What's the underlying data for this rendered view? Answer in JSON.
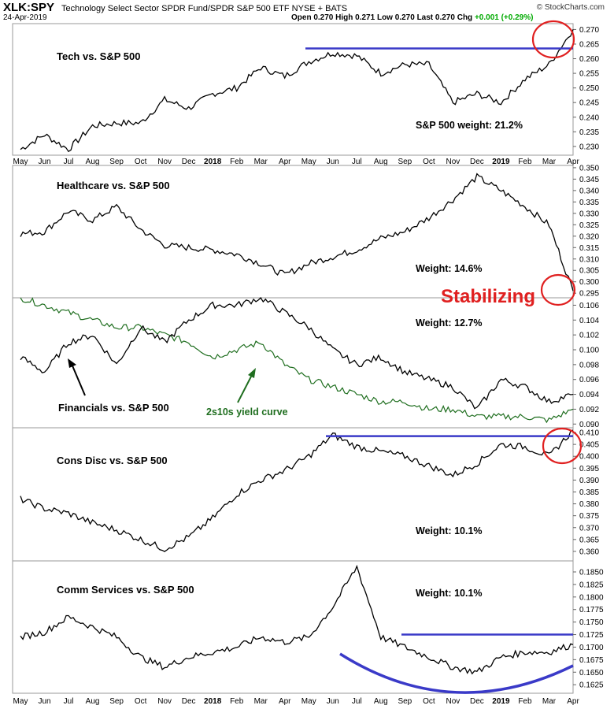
{
  "header": {
    "symbol": "XLK:SPY",
    "description": "Technology Select Sector SPDR Fund/SPDR S&P 500 ETF",
    "exchange": "NYSE + BATS",
    "date": "24-Apr-2019",
    "brand": "© StockCharts.com",
    "quote": {
      "open_label": "Open",
      "open": "0.270",
      "high_label": "High",
      "high": "0.271",
      "low_label": "Low",
      "low": "0.270",
      "last_label": "Last",
      "last": "0.270",
      "chg_label": "Chg",
      "chg": "+0.001 (+0.29%)"
    }
  },
  "x_axis": {
    "months": [
      "May",
      "Jun",
      "Jul",
      "Aug",
      "Sep",
      "Oct",
      "Nov",
      "Dec",
      "2018",
      "Feb",
      "Mar",
      "Apr",
      "May",
      "Jun",
      "Jul",
      "Aug",
      "Sep",
      "Oct",
      "Nov",
      "Dec",
      "2019",
      "Feb",
      "Mar",
      "Apr"
    ],
    "year_labels": [
      "2018",
      "2019"
    ]
  },
  "annotations": {
    "stabilizing": "Stabilizing",
    "yield_curve_label": "2s10s yield curve",
    "line_color_main": "#000000",
    "line_color_yield": "#1f6e1f",
    "resistance_color": "#3a3ac8",
    "circle_color": "#e02020"
  },
  "chart_data": [
    {
      "type": "line",
      "title": "Tech vs. S&P 500",
      "weight_label": "S&P 500 weight: 21.2%",
      "x": [
        "2017-05",
        "2017-06",
        "2017-07",
        "2017-08",
        "2017-09",
        "2017-10",
        "2017-11",
        "2017-12",
        "2018-01",
        "2018-02",
        "2018-03",
        "2018-04",
        "2018-05",
        "2018-06",
        "2018-07",
        "2018-08",
        "2018-09",
        "2018-10",
        "2018-11",
        "2018-12",
        "2019-01",
        "2019-02",
        "2019-03",
        "2019-04"
      ],
      "values": [
        0.229,
        0.234,
        0.229,
        0.237,
        0.238,
        0.238,
        0.246,
        0.243,
        0.248,
        0.25,
        0.257,
        0.254,
        0.259,
        0.262,
        0.261,
        0.255,
        0.258,
        0.258,
        0.245,
        0.248,
        0.245,
        0.253,
        0.258,
        0.27
      ],
      "ylim": [
        0.227,
        0.272
      ],
      "yticks": [
        "0.230",
        "0.235",
        "0.240",
        "0.245",
        "0.250",
        "0.255",
        "0.260",
        "0.265",
        "0.270"
      ],
      "resistance": 0.2635
    },
    {
      "type": "line",
      "title": "Healthcare vs. S&P 500",
      "weight_label": "Weight: 14.6%",
      "x": [
        "2017-05",
        "2017-06",
        "2017-07",
        "2017-08",
        "2017-09",
        "2017-10",
        "2017-11",
        "2017-12",
        "2018-01",
        "2018-02",
        "2018-03",
        "2018-04",
        "2018-05",
        "2018-06",
        "2018-07",
        "2018-08",
        "2018-09",
        "2018-10",
        "2018-11",
        "2018-12",
        "2019-01",
        "2019-02",
        "2019-03",
        "2019-04"
      ],
      "values": [
        0.321,
        0.322,
        0.331,
        0.327,
        0.333,
        0.323,
        0.316,
        0.315,
        0.314,
        0.312,
        0.308,
        0.303,
        0.308,
        0.311,
        0.314,
        0.319,
        0.322,
        0.328,
        0.336,
        0.346,
        0.34,
        0.333,
        0.325,
        0.296
      ],
      "ylim": [
        0.293,
        0.351
      ],
      "yticks": [
        "0.295",
        "0.300",
        "0.305",
        "0.310",
        "0.315",
        "0.320",
        "0.325",
        "0.330",
        "0.335",
        "0.340",
        "0.345",
        "0.350"
      ]
    },
    {
      "type": "line",
      "title": "Financials vs. S&P 500",
      "weight_label": "Weight: 12.7%",
      "x": [
        "2017-05",
        "2017-06",
        "2017-07",
        "2017-08",
        "2017-09",
        "2017-10",
        "2017-11",
        "2017-12",
        "2018-01",
        "2018-02",
        "2018-03",
        "2018-04",
        "2018-05",
        "2018-06",
        "2018-07",
        "2018-08",
        "2018-09",
        "2018-10",
        "2018-11",
        "2018-12",
        "2019-01",
        "2019-02",
        "2019-03",
        "2019-04"
      ],
      "values": [
        0.099,
        0.097,
        0.101,
        0.102,
        0.098,
        0.103,
        0.101,
        0.104,
        0.106,
        0.106,
        0.107,
        0.105,
        0.103,
        0.1,
        0.098,
        0.099,
        0.097,
        0.096,
        0.095,
        0.092,
        0.096,
        0.095,
        0.093,
        0.094
      ],
      "ylim": [
        0.0895,
        0.107
      ],
      "yticks": [
        "0.090",
        "0.092",
        "0.094",
        "0.096",
        "0.098",
        "0.100",
        "0.102",
        "0.104",
        "0.106"
      ],
      "series2_name": "2s10s yield curve",
      "series2_values": [
        0.107,
        0.106,
        0.105,
        0.104,
        0.103,
        0.103,
        0.102,
        0.101,
        0.099,
        0.1,
        0.101,
        0.098,
        0.096,
        0.095,
        0.094,
        0.093,
        0.093,
        0.092,
        0.092,
        0.091,
        0.091,
        0.091,
        0.0905,
        0.092
      ]
    },
    {
      "type": "line",
      "title": "Cons Disc vs. S&P 500",
      "weight_label": "Weight: 10.1%",
      "x": [
        "2017-05",
        "2017-06",
        "2017-07",
        "2017-08",
        "2017-09",
        "2017-10",
        "2017-11",
        "2017-12",
        "2018-01",
        "2018-02",
        "2018-03",
        "2018-04",
        "2018-05",
        "2018-06",
        "2018-07",
        "2018-08",
        "2018-09",
        "2018-10",
        "2018-11",
        "2018-12",
        "2019-01",
        "2019-02",
        "2019-03",
        "2019-04"
      ],
      "values": [
        0.382,
        0.378,
        0.376,
        0.372,
        0.369,
        0.365,
        0.361,
        0.366,
        0.374,
        0.384,
        0.39,
        0.394,
        0.4,
        0.409,
        0.404,
        0.402,
        0.4,
        0.396,
        0.392,
        0.397,
        0.405,
        0.404,
        0.4,
        0.411
      ],
      "ylim": [
        0.356,
        0.412
      ],
      "yticks": [
        "0.360",
        "0.365",
        "0.370",
        "0.375",
        "0.380",
        "0.385",
        "0.390",
        "0.395",
        "0.400",
        "0.405",
        "0.410"
      ],
      "resistance": 0.4085
    },
    {
      "type": "line",
      "title": "Comm Services vs. S&P 500",
      "weight_label": "Weight: 10.1%",
      "x": [
        "2017-05",
        "2017-06",
        "2017-07",
        "2017-08",
        "2017-09",
        "2017-10",
        "2017-11",
        "2017-12",
        "2018-01",
        "2018-02",
        "2018-03",
        "2018-04",
        "2018-05",
        "2018-06",
        "2018-07",
        "2018-08",
        "2018-09",
        "2018-10",
        "2018-11",
        "2018-12",
        "2019-01",
        "2019-02",
        "2019-03",
        "2019-04"
      ],
      "values": [
        0.172,
        0.173,
        0.176,
        0.174,
        0.172,
        0.168,
        0.166,
        0.168,
        0.169,
        0.17,
        0.172,
        0.171,
        0.172,
        0.178,
        0.186,
        0.172,
        0.17,
        0.168,
        0.166,
        0.165,
        0.168,
        0.169,
        0.169,
        0.1705
      ],
      "ylim": [
        0.1608,
        0.1872
      ],
      "yticks": [
        "0.1625",
        "0.1650",
        "0.1675",
        "0.1700",
        "0.1725",
        "0.1750",
        "0.1775",
        "0.1800",
        "0.1825",
        "0.1850"
      ],
      "resistance": 0.1725
    }
  ]
}
